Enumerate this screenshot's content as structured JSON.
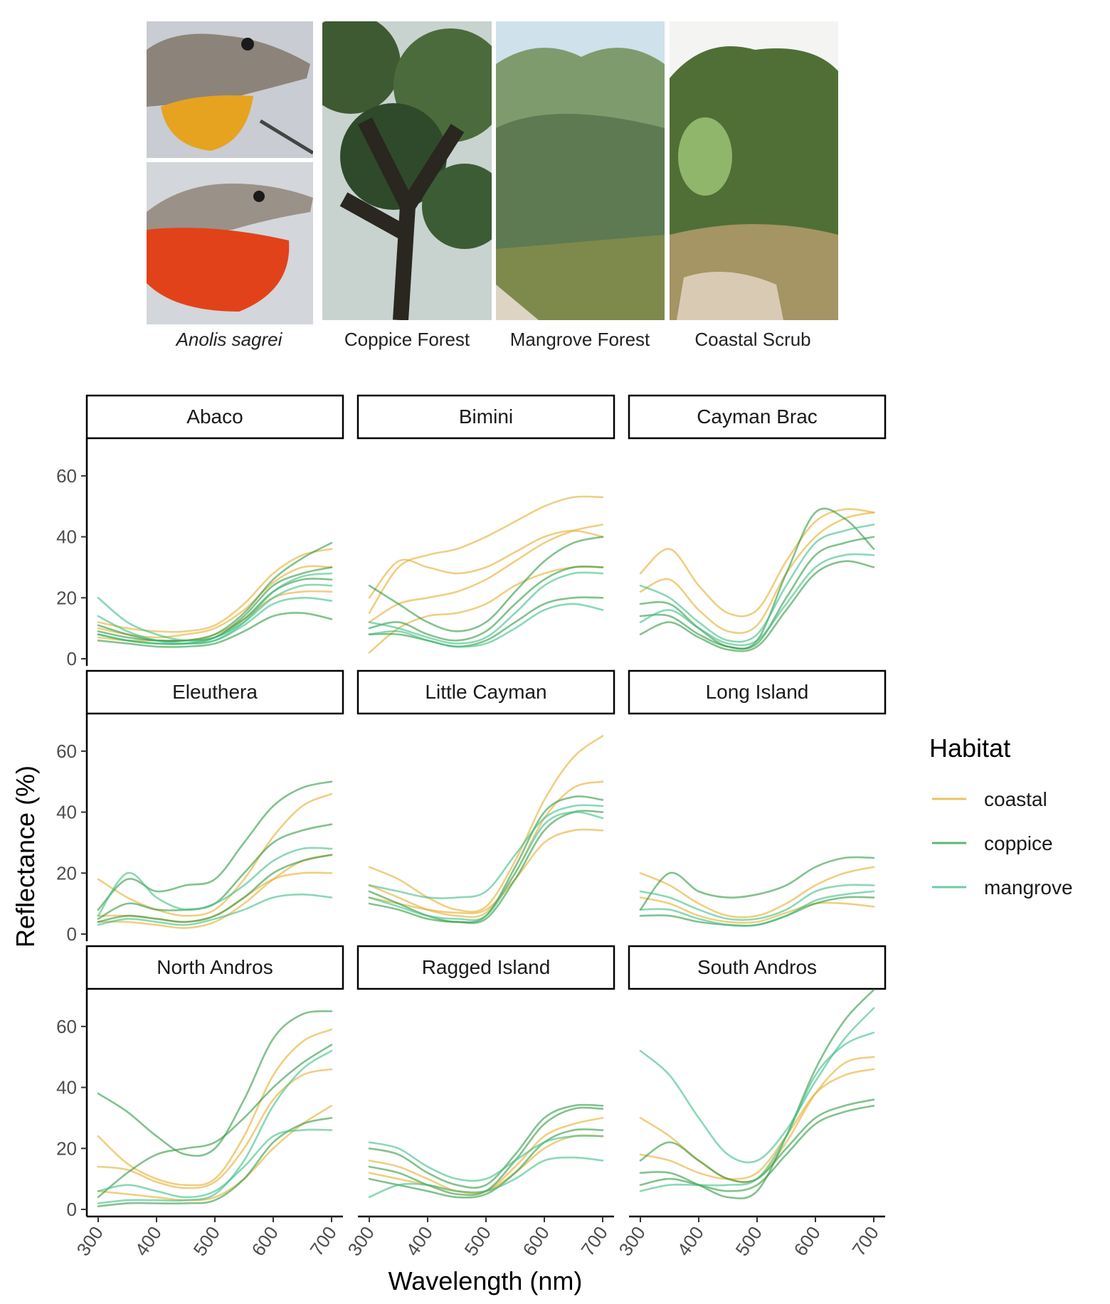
{
  "photos": {
    "captions": [
      "Anolis sagrei",
      "Coppice Forest",
      "Mangrove Forest",
      "Coastal Scrub"
    ]
  },
  "chart_data": {
    "type": "line",
    "xlabel": "Wavelength (nm)",
    "ylabel": "Reflectance (%)",
    "xlim": [
      300,
      700
    ],
    "ylim": [
      0,
      70
    ],
    "x_ticks": [
      300,
      400,
      500,
      600,
      700
    ],
    "y_ticks": [
      0,
      20,
      40,
      60
    ],
    "grid": false,
    "legend": {
      "title": "Habitat",
      "position": "right",
      "entries": [
        {
          "label": "coastal",
          "color": "#E6AE2E"
        },
        {
          "label": "coppice",
          "color": "#2E9A41"
        },
        {
          "label": "mangrove",
          "color": "#3DBE85"
        }
      ]
    },
    "x": [
      300,
      350,
      400,
      450,
      500,
      550,
      600,
      650,
      700
    ],
    "panels": [
      {
        "title": "Abaco",
        "series": [
          {
            "habitat": "coastal",
            "values": [
              10,
              8,
              7,
              8,
              10,
              16,
              25,
              30,
              30
            ]
          },
          {
            "habitat": "coastal",
            "values": [
              7,
              6,
              6,
              6,
              8,
              13,
              20,
              22,
              22
            ]
          },
          {
            "habitat": "coastal",
            "values": [
              12,
              10,
              9,
              9,
              11,
              18,
              28,
              34,
              36
            ]
          },
          {
            "habitat": "coppice",
            "values": [
              9,
              7,
              6,
              6,
              8,
              15,
              26,
              33,
              38
            ]
          },
          {
            "habitat": "coppice",
            "values": [
              6,
              5,
              4,
              4,
              5,
              9,
              14,
              15,
              13
            ]
          },
          {
            "habitat": "coppice",
            "values": [
              8,
              6,
              5,
              5,
              7,
              14,
              24,
              28,
              30
            ]
          },
          {
            "habitat": "coppice",
            "values": [
              11,
              8,
              6,
              6,
              7,
              13,
              22,
              26,
              26
            ]
          },
          {
            "habitat": "mangrove",
            "values": [
              20,
              12,
              8,
              6,
              7,
              12,
              20,
              24,
              24
            ]
          },
          {
            "habitat": "mangrove",
            "values": [
              14,
              9,
              6,
              5,
              6,
              11,
              18,
              20,
              19
            ]
          },
          {
            "habitat": "mangrove",
            "values": [
              8,
              6,
              5,
              5,
              6,
              12,
              22,
              27,
              28
            ]
          }
        ]
      },
      {
        "title": "Bimini",
        "series": [
          {
            "habitat": "coastal",
            "values": [
              15,
              30,
              34,
              36,
              40,
              45,
              50,
              53,
              53
            ]
          },
          {
            "habitat": "coastal",
            "values": [
              20,
              32,
              30,
              28,
              30,
              35,
              40,
              42,
              40
            ]
          },
          {
            "habitat": "coastal",
            "values": [
              12,
              18,
              20,
              22,
              26,
              32,
              38,
              42,
              44
            ]
          },
          {
            "habitat": "coastal",
            "values": [
              2,
              10,
              14,
              15,
              18,
              24,
              28,
              30,
              30
            ]
          },
          {
            "habitat": "coppice",
            "values": [
              24,
              18,
              12,
              9,
              12,
              22,
              32,
              38,
              40
            ]
          },
          {
            "habitat": "coppice",
            "values": [
              10,
              12,
              8,
              6,
              9,
              18,
              26,
              30,
              30
            ]
          },
          {
            "habitat": "coppice",
            "values": [
              8,
              8,
              6,
              4,
              6,
              12,
              18,
              20,
              20
            ]
          },
          {
            "habitat": "mangrove",
            "values": [
              12,
              10,
              7,
              5,
              7,
              15,
              24,
              28,
              28
            ]
          },
          {
            "habitat": "mangrove",
            "values": [
              8,
              9,
              6,
              4,
              5,
              10,
              16,
              18,
              16
            ]
          }
        ]
      },
      {
        "title": "Cayman Brac",
        "series": [
          {
            "habitat": "coastal",
            "values": [
              28,
              36,
              24,
              15,
              16,
              32,
              45,
              49,
              48
            ]
          },
          {
            "habitat": "coastal",
            "values": [
              22,
              26,
              16,
              9,
              11,
              28,
              40,
              46,
              48
            ]
          },
          {
            "habitat": "coppice",
            "values": [
              18,
              18,
              10,
              4,
              6,
              28,
              48,
              46,
              36
            ]
          },
          {
            "habitat": "coppice",
            "values": [
              14,
              14,
              8,
              4,
              5,
              20,
              34,
              38,
              40
            ]
          },
          {
            "habitat": "coppice",
            "values": [
              8,
              12,
              7,
              3,
              4,
              16,
              28,
              32,
              30
            ]
          },
          {
            "habitat": "mangrove",
            "values": [
              24,
              20,
              12,
              6,
              8,
              24,
              38,
              42,
              44
            ]
          },
          {
            "habitat": "mangrove",
            "values": [
              12,
              16,
              10,
              5,
              6,
              18,
              30,
              34,
              34
            ]
          }
        ]
      },
      {
        "title": "Eleuthera",
        "series": [
          {
            "habitat": "coastal",
            "values": [
              18,
              12,
              8,
              6,
              8,
              18,
              32,
              42,
              46
            ]
          },
          {
            "habitat": "coastal",
            "values": [
              4,
              4,
              3,
              2,
              4,
              10,
              18,
              24,
              26
            ]
          },
          {
            "habitat": "coastal",
            "values": [
              6,
              6,
              5,
              4,
              6,
              12,
              18,
              20,
              20
            ]
          },
          {
            "habitat": "coppice",
            "values": [
              8,
              18,
              14,
              16,
              18,
              30,
              42,
              48,
              50
            ]
          },
          {
            "habitat": "coppice",
            "values": [
              5,
              10,
              8,
              8,
              10,
              20,
              30,
              34,
              36
            ]
          },
          {
            "habitat": "coppice",
            "values": [
              4,
              6,
              5,
              4,
              6,
              12,
              20,
              24,
              26
            ]
          },
          {
            "habitat": "mangrove",
            "values": [
              6,
              20,
              12,
              8,
              10,
              16,
              24,
              28,
              28
            ]
          },
          {
            "habitat": "mangrove",
            "values": [
              3,
              5,
              4,
              3,
              5,
              8,
              12,
              13,
              12
            ]
          }
        ]
      },
      {
        "title": "Little Cayman",
        "series": [
          {
            "habitat": "coastal",
            "values": [
              22,
              18,
              12,
              8,
              9,
              24,
              44,
              58,
              65
            ]
          },
          {
            "habitat": "coastal",
            "values": [
              16,
              12,
              8,
              6,
              7,
              20,
              38,
              48,
              50
            ]
          },
          {
            "habitat": "coastal",
            "values": [
              12,
              10,
              8,
              7,
              8,
              18,
              30,
              34,
              34
            ]
          },
          {
            "habitat": "coppice",
            "values": [
              14,
              10,
              6,
              4,
              6,
              22,
              40,
              45,
              44
            ]
          },
          {
            "habitat": "coppice",
            "values": [
              10,
              8,
              5,
              4,
              5,
              18,
              34,
              40,
              40
            ]
          },
          {
            "habitat": "mangrove",
            "values": [
              16,
              14,
              12,
              12,
              14,
              26,
              38,
              42,
              42
            ]
          },
          {
            "habitat": "mangrove",
            "values": [
              12,
              9,
              6,
              5,
              6,
              20,
              36,
              40,
              38
            ]
          }
        ]
      },
      {
        "title": "Long Island",
        "series": [
          {
            "habitat": "coastal",
            "values": [
              20,
              16,
              10,
              6,
              6,
              10,
              16,
              20,
              22
            ]
          },
          {
            "habitat": "coastal",
            "values": [
              12,
              10,
              6,
              4,
              4,
              7,
              10,
              10,
              9
            ]
          },
          {
            "habitat": "coppice",
            "values": [
              8,
              20,
              14,
              12,
              13,
              16,
              22,
              25,
              25
            ]
          },
          {
            "habitat": "coppice",
            "values": [
              6,
              6,
              4,
              3,
              3,
              6,
              10,
              12,
              12
            ]
          },
          {
            "habitat": "mangrove",
            "values": [
              14,
              12,
              8,
              5,
              5,
              8,
              14,
              16,
              16
            ]
          },
          {
            "habitat": "mangrove",
            "values": [
              8,
              8,
              5,
              3,
              3,
              6,
              11,
              13,
              14
            ]
          }
        ]
      },
      {
        "title": "North Andros",
        "series": [
          {
            "habitat": "coastal",
            "values": [
              24,
              15,
              10,
              8,
              10,
              24,
              44,
              55,
              59
            ]
          },
          {
            "habitat": "coastal",
            "values": [
              14,
              13,
              9,
              7,
              9,
              20,
              36,
              44,
              46
            ]
          },
          {
            "habitat": "coastal",
            "values": [
              6,
              5,
              4,
              3,
              4,
              10,
              20,
              28,
              34
            ]
          },
          {
            "habitat": "coppice",
            "values": [
              38,
              32,
              24,
              18,
              20,
              36,
              56,
              64,
              65
            ]
          },
          {
            "habitat": "coppice",
            "values": [
              4,
              12,
              18,
              20,
              22,
              30,
              40,
              48,
              54
            ]
          },
          {
            "habitat": "coppice",
            "values": [
              1,
              2,
              2,
              2,
              3,
              10,
              22,
              28,
              30
            ]
          },
          {
            "habitat": "mangrove",
            "values": [
              2,
              3,
              3,
              3,
              5,
              16,
              34,
              46,
              52
            ]
          },
          {
            "habitat": "mangrove",
            "values": [
              6,
              8,
              6,
              4,
              6,
              14,
              24,
              26,
              26
            ]
          }
        ]
      },
      {
        "title": "Ragged Island",
        "series": [
          {
            "habitat": "coastal",
            "values": [
              16,
              14,
              10,
              6,
              6,
              14,
              24,
              28,
              30
            ]
          },
          {
            "habitat": "coastal",
            "values": [
              12,
              10,
              8,
              6,
              6,
              12,
              20,
              24,
              24
            ]
          },
          {
            "habitat": "coppice",
            "values": [
              14,
              12,
              8,
              5,
              6,
              16,
              28,
              33,
              33
            ]
          },
          {
            "habitat": "coppice",
            "values": [
              10,
              8,
              6,
              4,
              5,
              12,
              22,
              26,
              26
            ]
          },
          {
            "habitat": "coppice",
            "values": [
              20,
              18,
              12,
              8,
              8,
              18,
              30,
              34,
              34
            ]
          },
          {
            "habitat": "mangrove",
            "values": [
              4,
              8,
              8,
              6,
              6,
              10,
              16,
              17,
              16
            ]
          },
          {
            "habitat": "mangrove",
            "values": [
              22,
              20,
              14,
              10,
              10,
              16,
              22,
              24,
              24
            ]
          }
        ]
      },
      {
        "title": "South Andros",
        "series": [
          {
            "habitat": "coastal",
            "values": [
              30,
              24,
              16,
              10,
              10,
              22,
              38,
              48,
              50
            ]
          },
          {
            "habitat": "coastal",
            "values": [
              18,
              16,
              12,
              10,
              12,
              24,
              38,
              44,
              46
            ]
          },
          {
            "habitat": "coppice",
            "values": [
              12,
              12,
              8,
              4,
              6,
              24,
              46,
              62,
              72
            ]
          },
          {
            "habitat": "coppice",
            "values": [
              8,
              10,
              8,
              6,
              8,
              18,
              28,
              32,
              34
            ]
          },
          {
            "habitat": "coppice",
            "values": [
              16,
              22,
              16,
              10,
              10,
              20,
              30,
              34,
              36
            ]
          },
          {
            "habitat": "mangrove",
            "values": [
              52,
              44,
              30,
              18,
              16,
              26,
              42,
              56,
              66
            ]
          },
          {
            "habitat": "mangrove",
            "values": [
              6,
              8,
              8,
              8,
              10,
              24,
              44,
              54,
              58
            ]
          }
        ]
      }
    ]
  }
}
